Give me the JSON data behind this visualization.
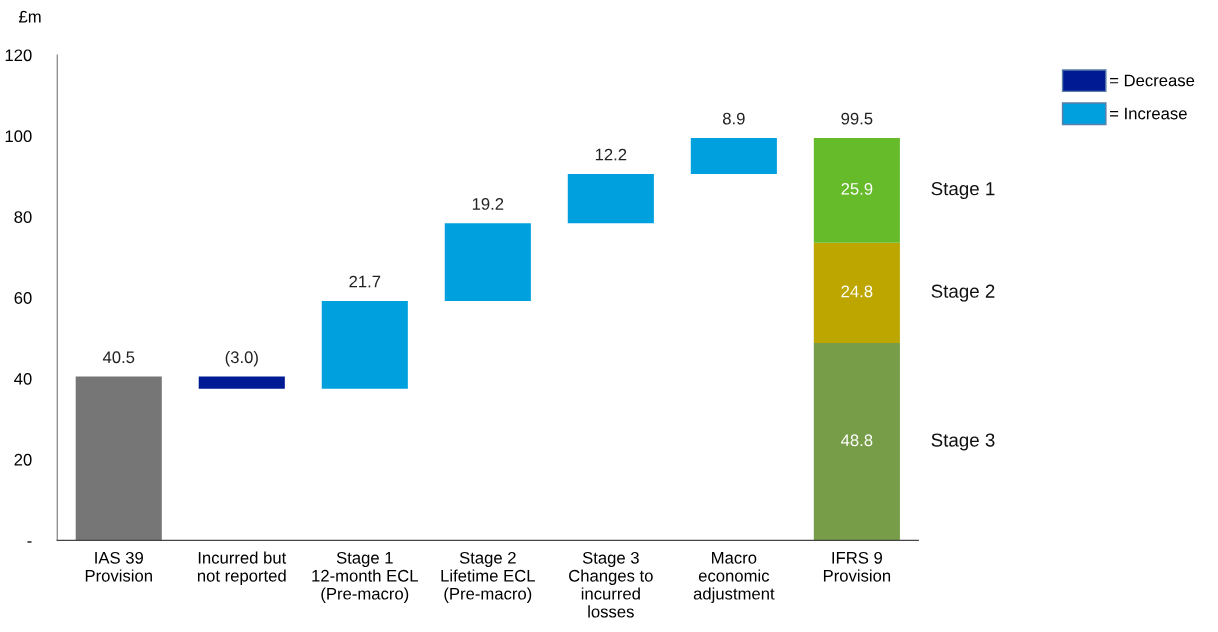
{
  "chart_data": {
    "type": "bar",
    "ylabel": "£m",
    "categories": [
      "IAS 39\nProvision",
      "Incurred but\nnot reported",
      "Stage 1\n12-month ECL\n(Pre-macro)",
      "Stage 2\nLifetime ECL\n(Pre-macro)",
      "Stage 3\nChanges to\nincurred\nlosses",
      "Macro\neconomic\nadjustment",
      "IFRS 9\nProvision"
    ],
    "series": [
      {
        "color": "#767676",
        "values": [
          40.5,
          null,
          null,
          null,
          null,
          null,
          null
        ],
        "base": [
          0,
          null,
          null,
          null,
          null,
          null,
          null
        ],
        "value_labels": [
          "40.5",
          null,
          null,
          null,
          null,
          null,
          null
        ]
      },
      {
        "name": "= Decrease",
        "color": "#001a94",
        "values": [
          null,
          -3.0,
          null,
          null,
          null,
          null,
          null
        ],
        "base": [
          null,
          40.5,
          null,
          null,
          null,
          null,
          null
        ],
        "value_labels": [
          null,
          "(3.0)",
          null,
          null,
          null,
          null,
          null
        ]
      },
      {
        "name": "= Increase",
        "color": "#00a0de",
        "values": [
          null,
          null,
          21.7,
          19.2,
          12.2,
          8.9,
          null
        ],
        "base": [
          null,
          null,
          37.5,
          59.2,
          78.4,
          90.6,
          null
        ],
        "value_labels": [
          null,
          null,
          "21.7",
          "19.2",
          "12.2",
          "8.9",
          null
        ]
      },
      {
        "name": "Stage 3",
        "color": "#779d48",
        "values": [
          null,
          null,
          null,
          null,
          null,
          null,
          48.8
        ],
        "base": [
          null,
          null,
          null,
          null,
          null,
          null,
          0
        ],
        "value_labels": [
          null,
          null,
          null,
          null,
          null,
          null,
          "48.8"
        ]
      },
      {
        "name": "Stage 2",
        "color": "#bea600",
        "values": [
          null,
          null,
          null,
          null,
          null,
          null,
          24.8
        ],
        "base": [
          null,
          null,
          null,
          null,
          null,
          null,
          48.8
        ],
        "value_labels": [
          null,
          null,
          null,
          null,
          null,
          null,
          "24.8"
        ]
      },
      {
        "name": "Stage 1",
        "color": "#66bb2b",
        "values": [
          null,
          null,
          null,
          null,
          null,
          null,
          25.9
        ],
        "base": [
          null,
          null,
          null,
          null,
          null,
          null,
          73.6
        ],
        "value_labels": [
          null,
          null,
          null,
          null,
          null,
          null,
          "25.9"
        ]
      }
    ],
    "totals": [
      null,
      null,
      null,
      null,
      null,
      null,
      "99.5"
    ],
    "ylim": [
      0,
      120
    ],
    "yticks": [
      {
        "value": 0,
        "label": "-"
      },
      20,
      40,
      60,
      80,
      100,
      120
    ],
    "grid": false,
    "legend": "top right"
  }
}
